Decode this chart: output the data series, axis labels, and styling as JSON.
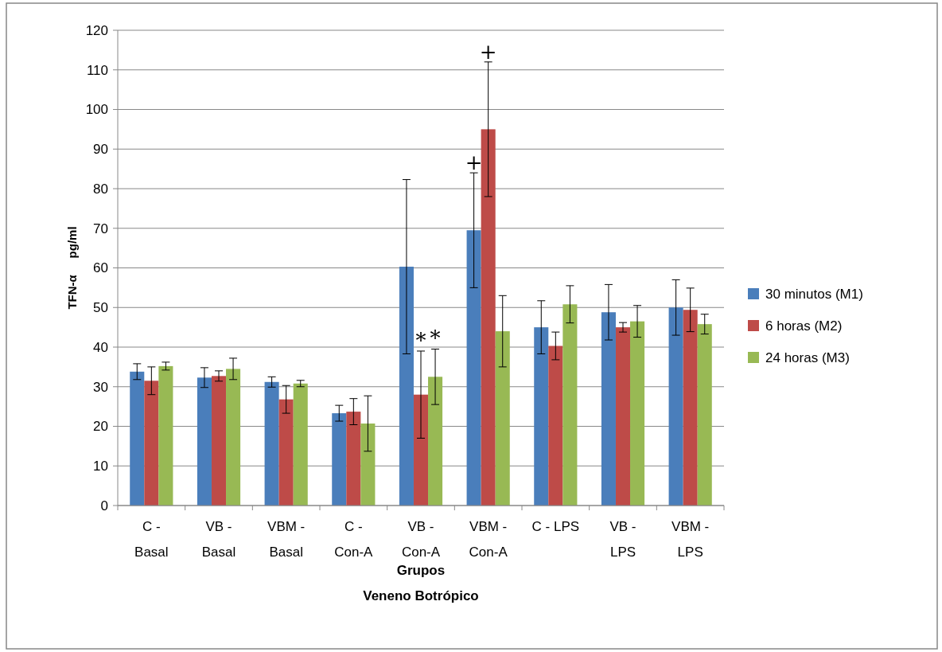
{
  "chart_data": {
    "type": "bar",
    "xlabel": "Grupos\nVeneno Botrópico",
    "ylabel": "TFN-α     pg/ml",
    "categories": [
      "C - Basal",
      "VB - Basal",
      "VBM - Basal",
      "C - Con-A",
      "VB - Con-A",
      "VBM - Con-A",
      "C - LPS",
      "VB - LPS",
      "VBM - LPS"
    ],
    "series": [
      {
        "name": "30 minutos (M1)",
        "color": "#4a7ebb",
        "values": [
          33.8,
          32.3,
          31.2,
          23.3,
          60.3,
          69.5,
          45,
          48.8,
          50
        ],
        "errors": [
          2,
          2.5,
          1.3,
          2,
          22,
          14.5,
          6.7,
          7,
          7
        ]
      },
      {
        "name": "6 horas (M2)",
        "color": "#be4b48",
        "values": [
          31.5,
          32.7,
          26.8,
          23.7,
          28,
          95,
          40.3,
          45,
          49.4
        ],
        "errors": [
          3.5,
          1.3,
          3.5,
          3.3,
          11,
          17,
          3.5,
          1.2,
          5.5
        ]
      },
      {
        "name": "24 horas (M3)",
        "color": "#98b954",
        "values": [
          35.2,
          34.5,
          30.8,
          20.7,
          32.5,
          44,
          50.8,
          46.5,
          45.8
        ],
        "errors": [
          1,
          2.7,
          0.8,
          7,
          7,
          9,
          4.7,
          4,
          2.5
        ]
      }
    ],
    "annotations": [
      {
        "text": "*",
        "x": "VB - Con-A",
        "y": 39
      },
      {
        "text": "*",
        "x": "VB - Con-A",
        "y": 39.5
      },
      {
        "text": "+",
        "x": "VBM - Con-A",
        "y": 84
      },
      {
        "text": "+",
        "x": "VBM - Con-A",
        "y": 112
      }
    ],
    "ylim": [
      0,
      120
    ],
    "yticks": [
      0,
      10,
      20,
      30,
      40,
      50,
      60,
      70,
      80,
      90,
      100,
      110,
      120
    ],
    "grid": "y",
    "legend": "right"
  }
}
